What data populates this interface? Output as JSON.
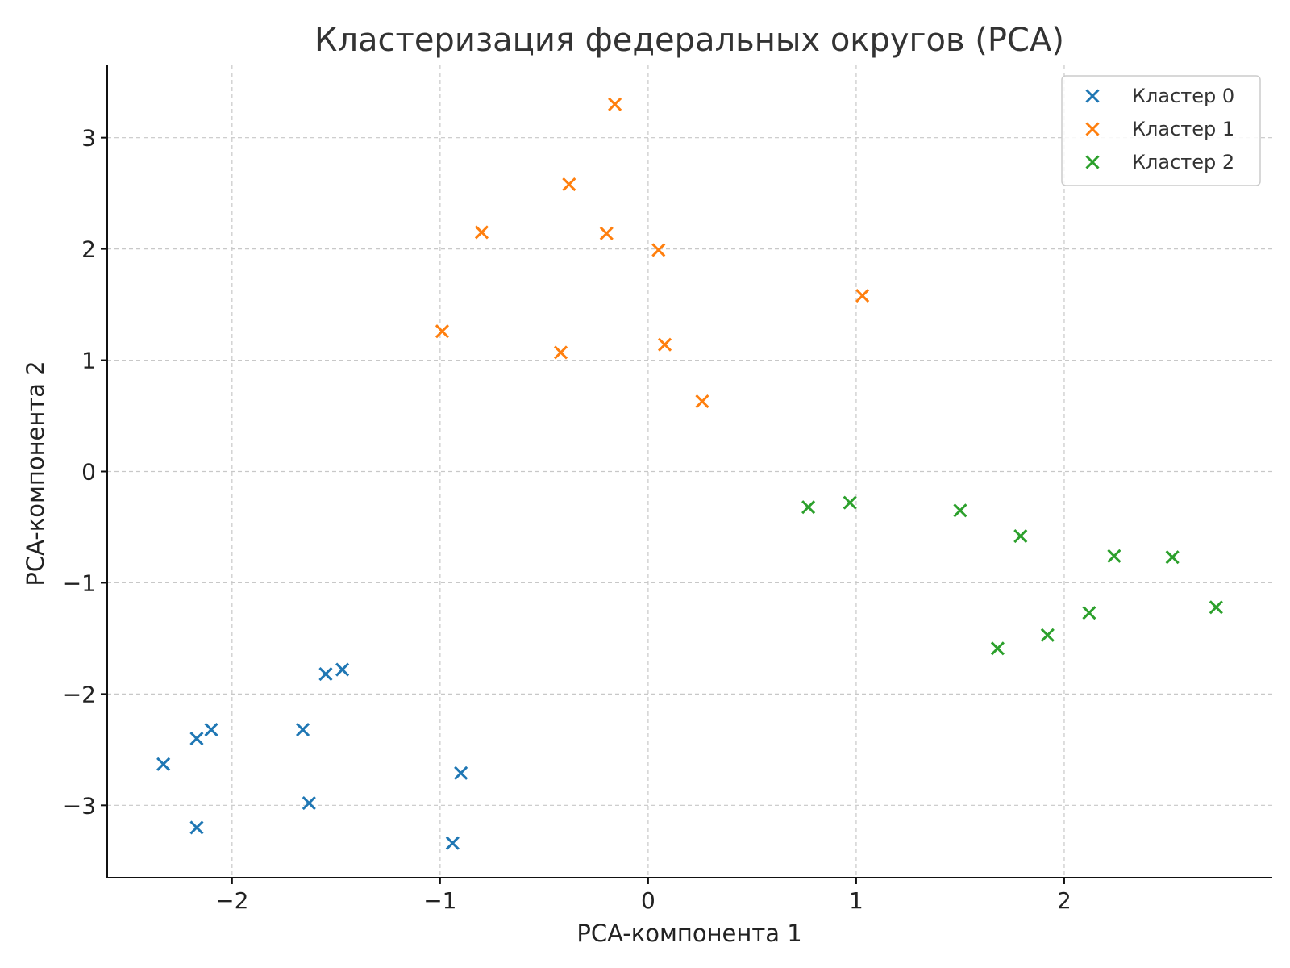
{
  "chart_data": {
    "type": "scatter",
    "title": "Кластеризация федеральных округов (PCA)",
    "xlabel": "PCA-компонента 1",
    "ylabel": "PCA-компонента 2",
    "xlim": [
      -2.6,
      3.0
    ],
    "ylim": [
      -3.65,
      3.65
    ],
    "xticks": [
      -2,
      -1,
      0,
      1,
      2
    ],
    "yticks": [
      -3,
      -2,
      -1,
      0,
      1,
      2,
      3
    ],
    "xtick_labels": [
      "−2",
      "−1",
      "0",
      "1",
      "2"
    ],
    "ytick_labels": [
      "−3",
      "−2",
      "−1",
      "0",
      "1",
      "2",
      "3"
    ],
    "grid": true,
    "legend_position": "top-right",
    "marker": "x",
    "series": [
      {
        "name": "Кластер 0",
        "color": "#1f77b4",
        "points": [
          [
            -2.33,
            -2.63
          ],
          [
            -2.17,
            -2.4
          ],
          [
            -2.1,
            -2.32
          ],
          [
            -2.17,
            -3.2
          ],
          [
            -1.66,
            -2.32
          ],
          [
            -1.63,
            -2.98
          ],
          [
            -1.55,
            -1.82
          ],
          [
            -1.47,
            -1.78
          ],
          [
            -0.9,
            -2.71
          ],
          [
            -0.94,
            -3.34
          ]
        ]
      },
      {
        "name": "Кластер 1",
        "color": "#ff7f0e",
        "points": [
          [
            -0.16,
            3.3
          ],
          [
            -0.38,
            2.58
          ],
          [
            -0.8,
            2.15
          ],
          [
            -0.2,
            2.14
          ],
          [
            0.05,
            1.99
          ],
          [
            1.03,
            1.58
          ],
          [
            -0.99,
            1.26
          ],
          [
            -0.42,
            1.07
          ],
          [
            0.08,
            1.14
          ],
          [
            0.26,
            0.63
          ]
        ]
      },
      {
        "name": "Кластер 2",
        "color": "#2ca02c",
        "points": [
          [
            0.77,
            -0.32
          ],
          [
            0.97,
            -0.28
          ],
          [
            1.5,
            -0.35
          ],
          [
            1.79,
            -0.58
          ],
          [
            2.24,
            -0.76
          ],
          [
            2.52,
            -0.77
          ],
          [
            2.73,
            -1.22
          ],
          [
            2.12,
            -1.27
          ],
          [
            1.92,
            -1.47
          ],
          [
            1.68,
            -1.59
          ]
        ]
      }
    ]
  }
}
